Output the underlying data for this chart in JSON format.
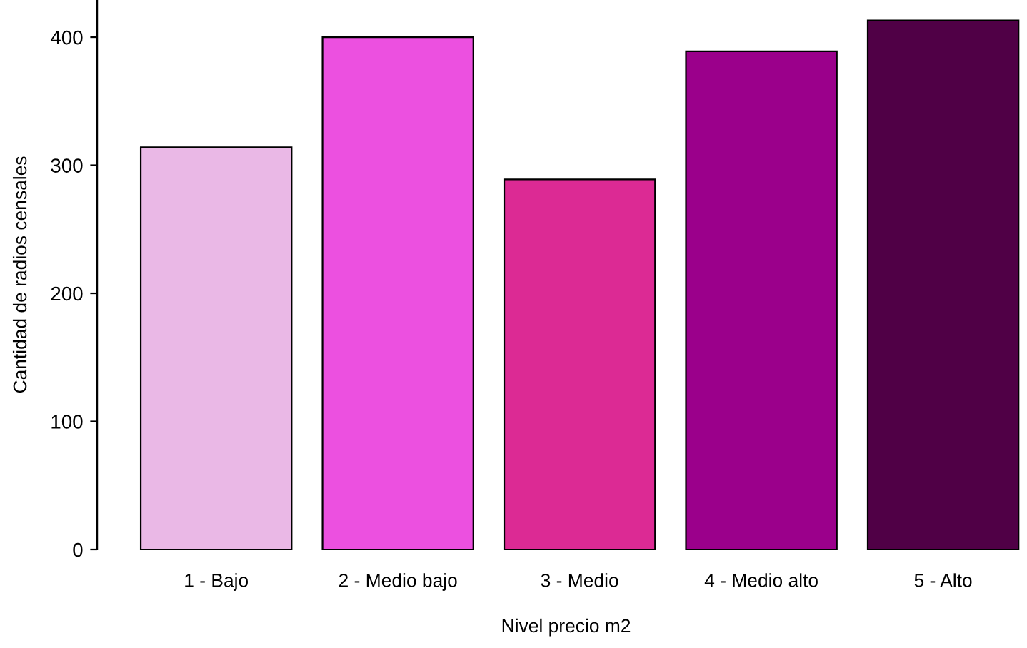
{
  "chart_data": {
    "type": "bar",
    "xlabel": "Nivel precio m2",
    "ylabel": "Cantidad de radios censales",
    "categories": [
      "1 - Bajo",
      "2 - Medio bajo",
      "3 - Medio",
      "4 - Medio alto",
      "5 - Alto"
    ],
    "values": [
      314,
      400,
      289,
      389,
      413
    ],
    "colors": [
      "#eab8e6",
      "#ec50e0",
      "#dc2a94",
      "#9b008b",
      "#500046"
    ],
    "ylim": [
      0,
      429
    ],
    "yticks": [
      0,
      100,
      200,
      300,
      400
    ],
    "grid": false
  }
}
